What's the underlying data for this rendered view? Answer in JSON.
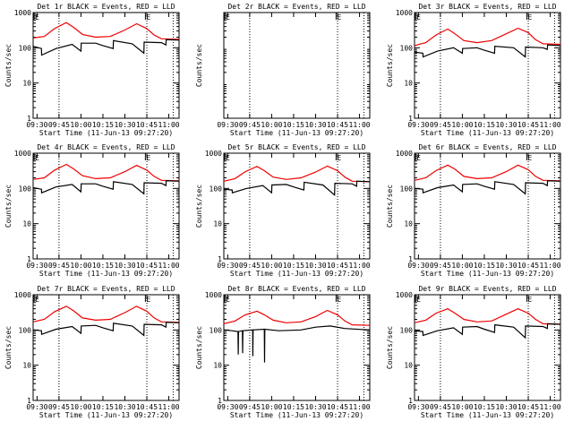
{
  "figure": {
    "xlabel": "Start Time (11-Jun-13 09:27:20)",
    "ylabel": "Counts/sec",
    "marker_label": "E",
    "colors": {
      "events": "#000000",
      "lld": "#ee0000",
      "axes": "#000000"
    }
  },
  "chart_data": [
    {
      "type": "line",
      "title": "Det 1r BLACK = Events, RED = LLD",
      "x_range": [
        "09:27:20",
        "11:07:00"
      ],
      "y_scale": "log",
      "ylim": [
        1,
        1000
      ],
      "x_ticks": [
        "09:30",
        "09:45",
        "10:00",
        "10:15",
        "10:30",
        "10:45",
        "11:00"
      ],
      "y_ticks": [
        "1",
        "10",
        "100",
        "1000"
      ],
      "marker_times": [
        "09:28:00",
        "10:44:00"
      ],
      "dotted_lines": [
        "09:45:00",
        "10:45:00",
        "11:03:00"
      ],
      "series": [
        {
          "name": "LLD",
          "x": [
            "09:27:20",
            "09:35:00",
            "09:42:00",
            "09:50:00",
            "09:55:00",
            "10:01:00",
            "10:10:00",
            "10:20:00",
            "10:30:00",
            "10:38:00",
            "10:45:00",
            "10:50:00",
            "10:55:00",
            "11:07:00"
          ],
          "values": [
            190,
            210,
            350,
            520,
            380,
            240,
            200,
            210,
            320,
            480,
            350,
            230,
            180,
            175
          ]
        },
        {
          "name": "Events",
          "x": [
            "09:27:20",
            "09:33:00",
            "09:33:10",
            "09:43:00",
            "09:54:00",
            "10:00:00",
            "10:00:10",
            "10:10:00",
            "10:15:00",
            "10:22:00",
            "10:22:10",
            "10:35:00",
            "10:43:00",
            "10:43:10",
            "10:55:00",
            "10:58:00",
            "10:58:10",
            "11:07:00"
          ],
          "values": [
            110,
            95,
            62,
            95,
            125,
            80,
            135,
            135,
            115,
            95,
            160,
            130,
            70,
            145,
            140,
            120,
            170,
            165
          ]
        }
      ]
    },
    {
      "type": "line",
      "title": "Det 2r BLACK = Events, RED = LLD",
      "x_range": [
        "09:27:20",
        "11:07:00"
      ],
      "y_scale": "log",
      "ylim": [
        1,
        1000
      ],
      "x_ticks": [
        "09:30",
        "09:45",
        "10:00",
        "10:15",
        "10:30",
        "10:45",
        "11:00"
      ],
      "y_ticks": [],
      "marker_times": [
        "09:28:00",
        "10:44:00"
      ],
      "dotted_lines": [
        "09:45:00",
        "10:45:00",
        "11:03:00"
      ],
      "series": []
    },
    {
      "type": "line",
      "title": "Det 3r BLACK = Events, RED = LLD",
      "x_range": [
        "09:27:20",
        "11:07:00"
      ],
      "y_scale": "log",
      "ylim": [
        1,
        1000
      ],
      "x_ticks": [
        "09:30",
        "09:45",
        "10:00",
        "10:15",
        "10:30",
        "10:45",
        "11:00"
      ],
      "y_ticks": [
        "1",
        "10",
        "100",
        "1000"
      ],
      "marker_times": [
        "09:28:00",
        "10:44:00"
      ],
      "dotted_lines": [
        "09:45:00",
        "10:45:00",
        "11:03:00"
      ],
      "series": [
        {
          "name": "LLD",
          "x": [
            "09:27:20",
            "09:35:00",
            "09:42:00",
            "09:50:00",
            "09:55:00",
            "10:01:00",
            "10:10:00",
            "10:20:00",
            "10:30:00",
            "10:38:00",
            "10:45:00",
            "10:50:00",
            "10:55:00",
            "11:07:00"
          ],
          "values": [
            115,
            140,
            230,
            340,
            250,
            160,
            140,
            160,
            250,
            360,
            270,
            170,
            130,
            125
          ]
        },
        {
          "name": "Events",
          "x": [
            "09:27:20",
            "09:33:00",
            "09:33:10",
            "09:43:00",
            "09:54:00",
            "10:00:00",
            "10:00:10",
            "10:10:00",
            "10:15:00",
            "10:22:00",
            "10:22:10",
            "10:35:00",
            "10:43:00",
            "10:43:10",
            "10:55:00",
            "10:58:00",
            "10:58:10",
            "11:07:00"
          ],
          "values": [
            75,
            70,
            55,
            80,
            100,
            70,
            95,
            100,
            85,
            70,
            110,
            100,
            55,
            105,
            100,
            90,
            120,
            115
          ]
        }
      ]
    },
    {
      "type": "line",
      "title": "Det 4r BLACK = Events, RED = LLD",
      "x_range": [
        "09:27:20",
        "11:07:00"
      ],
      "y_scale": "log",
      "ylim": [
        1,
        1000
      ],
      "x_ticks": [
        "09:30",
        "09:45",
        "10:00",
        "10:15",
        "10:30",
        "10:45",
        "11:00"
      ],
      "y_ticks": [
        "1",
        "10",
        "100",
        "1000"
      ],
      "marker_times": [
        "09:28:00",
        "10:44:00"
      ],
      "dotted_lines": [
        "09:45:00",
        "10:45:00",
        "11:03:00"
      ],
      "series": [
        {
          "name": "LLD",
          "x": [
            "09:27:20",
            "09:35:00",
            "09:42:00",
            "09:50:00",
            "09:55:00",
            "10:01:00",
            "10:10:00",
            "10:20:00",
            "10:30:00",
            "10:38:00",
            "10:45:00",
            "10:50:00",
            "10:55:00",
            "11:07:00"
          ],
          "values": [
            180,
            200,
            330,
            480,
            360,
            230,
            190,
            200,
            300,
            450,
            330,
            220,
            170,
            165
          ]
        },
        {
          "name": "Events",
          "x": [
            "09:27:20",
            "09:33:00",
            "09:33:10",
            "09:43:00",
            "09:54:00",
            "10:00:00",
            "10:00:10",
            "10:10:00",
            "10:15:00",
            "10:22:00",
            "10:22:10",
            "10:35:00",
            "10:43:00",
            "10:43:10",
            "10:55:00",
            "10:58:00",
            "10:58:10",
            "11:07:00"
          ],
          "values": [
            105,
            95,
            75,
            110,
            130,
            80,
            135,
            135,
            115,
            95,
            155,
            130,
            70,
            145,
            140,
            120,
            165,
            160
          ]
        }
      ]
    },
    {
      "type": "line",
      "title": "Det 5r BLACK = Events, RED = LLD",
      "x_range": [
        "09:27:20",
        "11:07:00"
      ],
      "y_scale": "log",
      "ylim": [
        1,
        1000
      ],
      "x_ticks": [
        "09:30",
        "09:45",
        "10:00",
        "10:15",
        "10:30",
        "10:45",
        "11:00"
      ],
      "y_ticks": [
        "1",
        "10",
        "100",
        "1000"
      ],
      "marker_times": [
        "09:28:00",
        "10:44:00"
      ],
      "dotted_lines": [
        "09:45:00",
        "10:45:00",
        "11:03:00"
      ],
      "series": [
        {
          "name": "LLD",
          "x": [
            "09:27:20",
            "09:35:00",
            "09:42:00",
            "09:50:00",
            "09:55:00",
            "10:01:00",
            "10:10:00",
            "10:20:00",
            "10:30:00",
            "10:38:00",
            "10:45:00",
            "10:50:00",
            "10:55:00",
            "11:07:00"
          ],
          "values": [
            160,
            190,
            300,
            420,
            320,
            210,
            180,
            200,
            290,
            430,
            320,
            210,
            160,
            155
          ]
        },
        {
          "name": "Events",
          "x": [
            "09:27:20",
            "09:33:00",
            "09:33:10",
            "09:43:00",
            "09:54:00",
            "10:00:00",
            "10:00:10",
            "10:10:00",
            "10:15:00",
            "10:22:00",
            "10:22:10",
            "10:35:00",
            "10:43:00",
            "10:43:10",
            "10:55:00",
            "10:58:00",
            "10:58:10",
            "11:07:00"
          ],
          "values": [
            95,
            90,
            75,
            100,
            120,
            75,
            125,
            130,
            110,
            90,
            150,
            125,
            65,
            140,
            135,
            115,
            160,
            155
          ]
        }
      ]
    },
    {
      "type": "line",
      "title": "Det 6r BLACK = Events, RED = LLD",
      "x_range": [
        "09:27:20",
        "11:07:00"
      ],
      "y_scale": "log",
      "ylim": [
        1,
        1000
      ],
      "x_ticks": [
        "09:30",
        "09:45",
        "10:00",
        "10:15",
        "10:30",
        "10:45",
        "11:00"
      ],
      "y_ticks": [
        "1",
        "10",
        "100",
        "1000"
      ],
      "marker_times": [
        "09:28:00",
        "10:44:00"
      ],
      "dotted_lines": [
        "09:45:00",
        "10:45:00",
        "11:03:00"
      ],
      "series": [
        {
          "name": "LLD",
          "x": [
            "09:27:20",
            "09:35:00",
            "09:42:00",
            "09:50:00",
            "09:55:00",
            "10:01:00",
            "10:10:00",
            "10:20:00",
            "10:30:00",
            "10:38:00",
            "10:45:00",
            "10:50:00",
            "10:55:00",
            "11:07:00"
          ],
          "values": [
            170,
            200,
            320,
            460,
            350,
            220,
            190,
            200,
            300,
            460,
            340,
            220,
            170,
            165
          ]
        },
        {
          "name": "Events",
          "x": [
            "09:27:20",
            "09:33:00",
            "09:33:10",
            "09:43:00",
            "09:54:00",
            "10:00:00",
            "10:00:10",
            "10:10:00",
            "10:15:00",
            "10:22:00",
            "10:22:10",
            "10:35:00",
            "10:43:00",
            "10:43:10",
            "10:55:00",
            "10:58:00",
            "10:58:10",
            "11:07:00"
          ],
          "values": [
            100,
            95,
            75,
            105,
            125,
            80,
            130,
            135,
            115,
            95,
            155,
            130,
            70,
            145,
            140,
            120,
            165,
            160
          ]
        }
      ]
    },
    {
      "type": "line",
      "title": "Det 7r BLACK = Events, RED = LLD",
      "x_range": [
        "09:27:20",
        "11:07:00"
      ],
      "y_scale": "log",
      "ylim": [
        1,
        1000
      ],
      "x_ticks": [
        "09:30",
        "09:45",
        "10:00",
        "10:15",
        "10:30",
        "10:45",
        "11:00"
      ],
      "y_ticks": [
        "1",
        "10",
        "100",
        "1000"
      ],
      "marker_times": [
        "09:28:00",
        "10:44:00"
      ],
      "dotted_lines": [
        "09:45:00",
        "10:45:00",
        "11:03:00"
      ],
      "series": [
        {
          "name": "LLD",
          "x": [
            "09:27:20",
            "09:35:00",
            "09:42:00",
            "09:50:00",
            "09:55:00",
            "10:01:00",
            "10:10:00",
            "10:20:00",
            "10:30:00",
            "10:38:00",
            "10:45:00",
            "10:50:00",
            "10:55:00",
            "11:07:00"
          ],
          "values": [
            170,
            200,
            330,
            470,
            350,
            220,
            190,
            200,
            310,
            470,
            340,
            220,
            170,
            165
          ]
        },
        {
          "name": "Events",
          "x": [
            "09:27:20",
            "09:33:00",
            "09:33:10",
            "09:43:00",
            "09:54:00",
            "10:00:00",
            "10:00:10",
            "10:10:00",
            "10:15:00",
            "10:22:00",
            "10:22:10",
            "10:35:00",
            "10:43:00",
            "10:43:10",
            "10:55:00",
            "10:58:00",
            "10:58:10",
            "11:07:00"
          ],
          "values": [
            100,
            95,
            75,
            105,
            125,
            80,
            130,
            135,
            115,
            95,
            155,
            130,
            70,
            145,
            140,
            120,
            165,
            160
          ]
        }
      ]
    },
    {
      "type": "line",
      "title": "Det 8r BLACK = Events, RED = LLD",
      "x_range": [
        "09:27:20",
        "11:07:00"
      ],
      "y_scale": "log",
      "ylim": [
        1,
        1000
      ],
      "x_ticks": [
        "09:30",
        "09:45",
        "10:00",
        "10:15",
        "10:30",
        "10:45",
        "11:00"
      ],
      "y_ticks": [
        "1",
        "10",
        "100",
        "1000"
      ],
      "marker_times": [
        "09:28:00",
        "10:44:00"
      ],
      "dotted_lines": [
        "09:45:00",
        "10:45:00",
        "11:03:00"
      ],
      "series": [
        {
          "name": "LLD",
          "x": [
            "09:27:20",
            "09:35:00",
            "09:42:00",
            "09:50:00",
            "09:55:00",
            "10:01:00",
            "10:10:00",
            "10:20:00",
            "10:30:00",
            "10:38:00",
            "10:45:00",
            "10:50:00",
            "10:55:00",
            "11:07:00"
          ],
          "values": [
            150,
            180,
            270,
            340,
            270,
            190,
            160,
            170,
            240,
            360,
            270,
            180,
            140,
            135
          ]
        },
        {
          "name": "Events",
          "x": [
            "09:27:20",
            "09:33:00",
            "09:37:00",
            "09:37:10",
            "09:37:20",
            "09:40:00",
            "09:40:10",
            "09:40:20",
            "09:47:00",
            "09:47:10",
            "09:47:20",
            "09:55:00",
            "09:55:10",
            "09:55:20",
            "10:05:00",
            "10:20:00",
            "10:30:00",
            "10:40:00",
            "10:50:00",
            "11:07:00"
          ],
          "values": [
            100,
            95,
            90,
            20,
            90,
            95,
            22,
            95,
            100,
            18,
            100,
            105,
            12,
            105,
            95,
            100,
            120,
            130,
            110,
            100
          ]
        }
      ]
    },
    {
      "type": "line",
      "title": "Det 9r BLACK = Events, RED = LLD",
      "x_range": [
        "09:27:20",
        "11:07:00"
      ],
      "y_scale": "log",
      "ylim": [
        1,
        1000
      ],
      "x_ticks": [
        "09:30",
        "09:45",
        "10:00",
        "10:15",
        "10:30",
        "10:45",
        "11:00"
      ],
      "y_ticks": [
        "1",
        "10",
        "100",
        "1000"
      ],
      "marker_times": [
        "09:28:00",
        "10:44:00"
      ],
      "dotted_lines": [
        "09:45:00",
        "10:45:00",
        "11:03:00"
      ],
      "series": [
        {
          "name": "LLD",
          "x": [
            "09:27:20",
            "09:35:00",
            "09:42:00",
            "09:50:00",
            "09:55:00",
            "10:01:00",
            "10:10:00",
            "10:20:00",
            "10:30:00",
            "10:38:00",
            "10:45:00",
            "10:50:00",
            "10:55:00",
            "11:07:00"
          ],
          "values": [
            160,
            190,
            300,
            400,
            300,
            200,
            170,
            180,
            280,
            400,
            300,
            200,
            150,
            145
          ]
        },
        {
          "name": "Events",
          "x": [
            "09:27:20",
            "09:33:00",
            "09:33:10",
            "09:43:00",
            "09:54:00",
            "10:00:00",
            "10:00:10",
            "10:10:00",
            "10:15:00",
            "10:22:00",
            "10:22:10",
            "10:35:00",
            "10:43:00",
            "10:43:10",
            "10:55:00",
            "10:58:00",
            "10:58:10",
            "11:07:00"
          ],
          "values": [
            95,
            90,
            70,
            95,
            115,
            75,
            120,
            125,
            105,
            85,
            140,
            120,
            60,
            130,
            125,
            110,
            150,
            145
          ]
        }
      ]
    }
  ]
}
